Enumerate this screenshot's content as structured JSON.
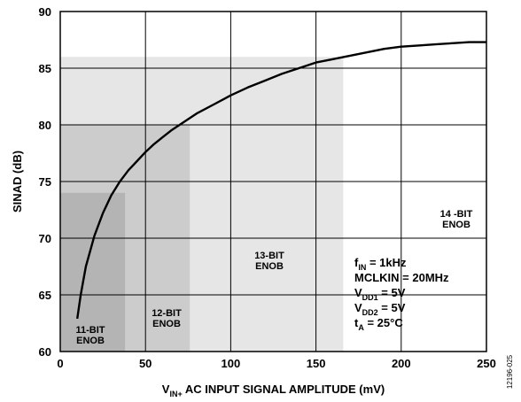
{
  "chart_data": {
    "type": "line",
    "xlabel": "V_IN+ AC INPUT SIGNAL AMPLITUDE (mV)",
    "xlabel_parts": {
      "main": "V",
      "sub": "IN+",
      "rest": " AC INPUT SIGNAL AMPLITUDE (mV)"
    },
    "ylabel": "SINAD (dB)",
    "xlim": [
      0,
      250
    ],
    "ylim": [
      60,
      90
    ],
    "xticks": [
      0,
      50,
      100,
      150,
      200,
      250
    ],
    "yticks": [
      60,
      65,
      70,
      75,
      80,
      85,
      90
    ],
    "grid": true,
    "series": [
      {
        "x": [
          10,
          12,
          15,
          20,
          25,
          30,
          35,
          40,
          45,
          50,
          55,
          60,
          65,
          70,
          75,
          80,
          90,
          100,
          110,
          120,
          130,
          140,
          150,
          160,
          170,
          180,
          190,
          200,
          210,
          220,
          230,
          240,
          250
        ],
        "y": [
          62.9,
          65.0,
          67.5,
          70.2,
          72.2,
          73.8,
          75.0,
          76.0,
          76.8,
          77.6,
          78.3,
          78.9,
          79.5,
          80.0,
          80.5,
          81.0,
          81.8,
          82.6,
          83.3,
          83.9,
          84.5,
          85.0,
          85.5,
          85.8,
          86.1,
          86.4,
          86.7,
          86.9,
          87.0,
          87.1,
          87.2,
          87.3,
          87.3
        ],
        "color": "#000000"
      }
    ],
    "regions": [
      {
        "label_lines": [
          "14 -BIT",
          "ENOB"
        ],
        "x_max": 250,
        "y_max": 90,
        "color": "#ffffff"
      },
      {
        "label_lines": [
          "13-BIT",
          "ENOB"
        ],
        "x_max": 166,
        "y_max": 86,
        "color": "#e6e6e6"
      },
      {
        "label_lines": [
          "12-BIT",
          "ENOB"
        ],
        "x_max": 76,
        "y_max": 80,
        "color": "#cccccc"
      },
      {
        "label_lines": [
          "11-BIT",
          "ENOB"
        ],
        "x_max": 38,
        "y_max": 74,
        "color": "#b4b4b4"
      }
    ],
    "conditions": [
      {
        "main": "f",
        "sub": "IN",
        "rest": " = 1kHz"
      },
      {
        "main": "MCLKIN = 20MHz",
        "sub": "",
        "rest": ""
      },
      {
        "main": "V",
        "sub": "DD1",
        "rest": " = 5V"
      },
      {
        "main": "V",
        "sub": "DD2",
        "rest": " = 5V"
      },
      {
        "main": "t",
        "sub": "A",
        "rest": " = 25°C"
      }
    ],
    "figure_id": "12196-025"
  }
}
